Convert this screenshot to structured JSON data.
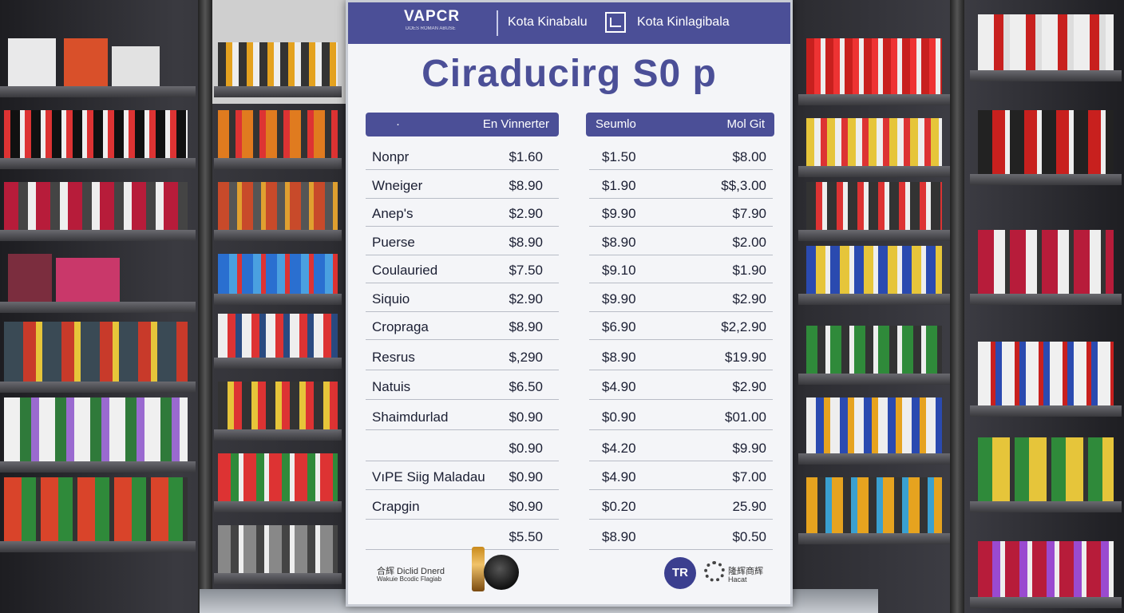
{
  "sign": {
    "brand": "VAPCR",
    "brand_sub": "DOES ROMAN ABUSE",
    "location_1": "Kota Kinabalu",
    "location_2": "Kota Kinlagibala",
    "title": "Ciraducirg S0 p",
    "left_header": {
      "a": "·",
      "b": "En Vinnerter"
    },
    "right_header": {
      "a": "Seumlo",
      "b": "Mol Git"
    },
    "left_rows": [
      {
        "name": "Nonpr",
        "price": "$1.60"
      },
      {
        "name": "Wneiger",
        "price": "$8.90"
      },
      {
        "name": "Anep's",
        "price": "$2.90"
      },
      {
        "name": "Puerse",
        "price": "$8.90"
      },
      {
        "name": "Coulauried",
        "price": "$7.50"
      },
      {
        "name": "Siquio",
        "price": "$2.90"
      },
      {
        "name": "Cropraga",
        "price": "$8.90"
      },
      {
        "name": "Resrus",
        "price": "$,290"
      },
      {
        "name": "Natuis",
        "price": "$6.50"
      },
      {
        "name": "Shaimdurlad",
        "price": "$0.90"
      },
      {
        "name": "",
        "price": "$0.90"
      },
      {
        "name": "VıPE Siig Maladau",
        "price": "$0.90"
      },
      {
        "name": "Crapgin",
        "price": "$0.90"
      },
      {
        "name": "",
        "price": "$5.50"
      }
    ],
    "right_rows": [
      {
        "a": "$1.50",
        "b": "$8.00"
      },
      {
        "a": "$1.90",
        "b": "$$,3.00"
      },
      {
        "a": "$9.90",
        "b": "$7.90"
      },
      {
        "a": "$8.90",
        "b": "$2.00"
      },
      {
        "a": "$9.10",
        "b": "$1.90"
      },
      {
        "a": "$9.90",
        "b": "$2.90"
      },
      {
        "a": "$6.90",
        "b": "$2,2.90"
      },
      {
        "a": "$8.90",
        "b": "$19.90"
      },
      {
        "a": "$4.90",
        "b": "$2.90"
      },
      {
        "a": "$0.90",
        "b": "$01.00"
      },
      {
        "a": "$4.20",
        "b": "$9.90"
      },
      {
        "a": "$4.90",
        "b": "$7.00"
      },
      {
        "a": "$0.20",
        "b": "25.90"
      },
      {
        "a": "$8.90",
        "b": "$0.50"
      }
    ],
    "footer_left_1": "合辉 Diclid Dnerd",
    "footer_left_2": "Wakuie Bcodic Flagiab",
    "footer_logo": "TR",
    "footer_right_1": "隆辉商辉",
    "footer_right_2": "Hacat",
    "accent_color": "#4b4f97"
  }
}
